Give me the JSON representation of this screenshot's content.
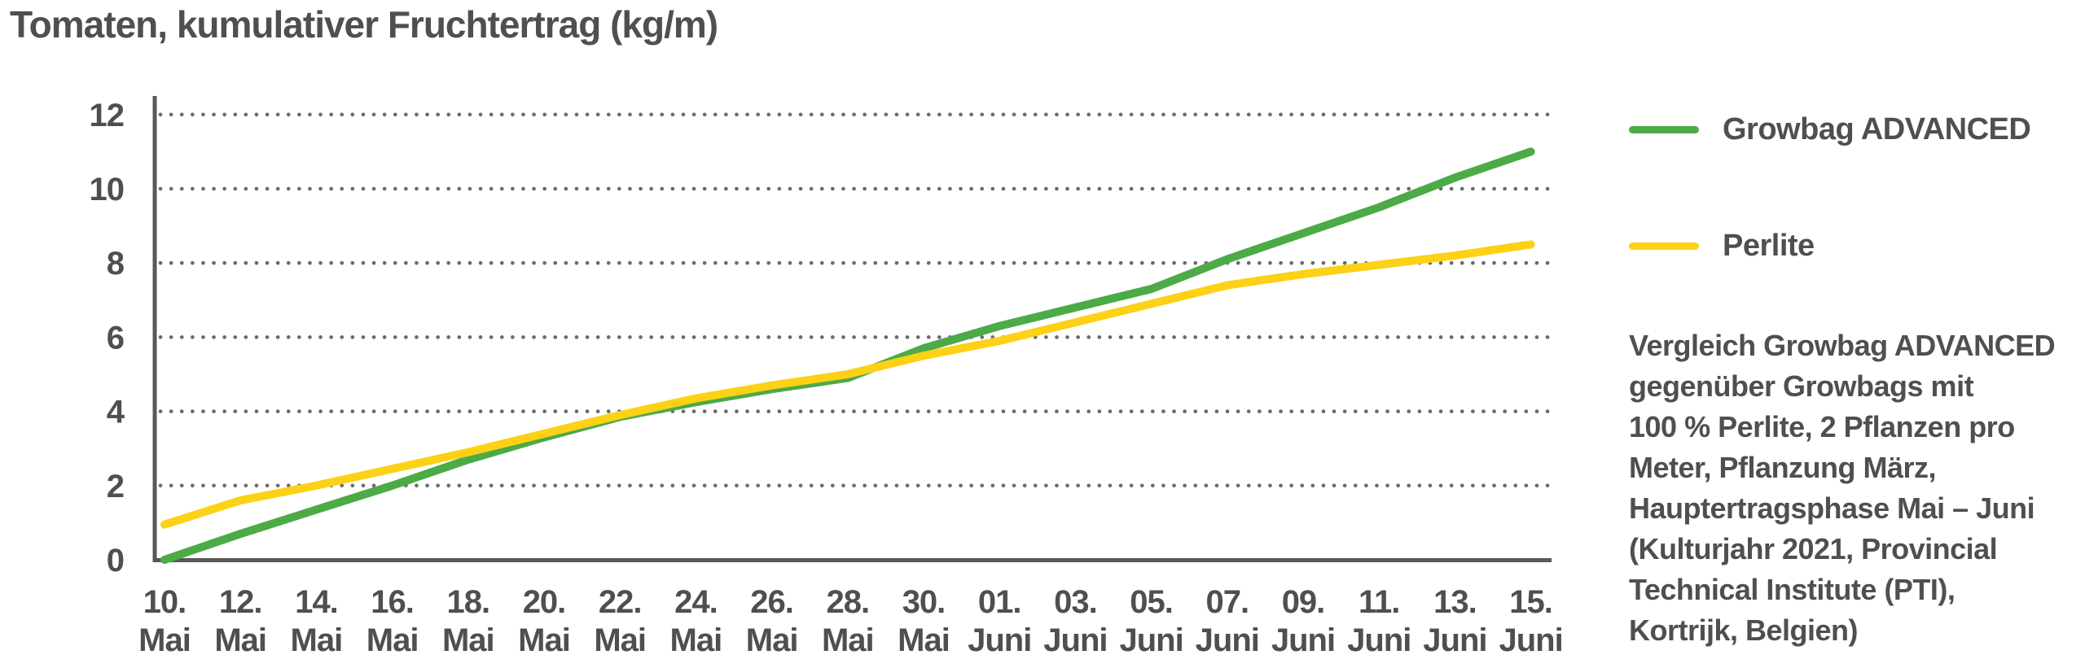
{
  "title": "Tomaten, kumulativer Fruchtertrag (kg/m)",
  "caption": "Vergleich Growbag ADVANCED\ngegenüber Growbags mit\n100 % Perlite, 2 Pflanzen pro\nMeter, Pflanzung März,\nHauptertragsphase Mai – Juni\n(Kulturjahr 2021, Provincial\nTechnical Institute (PTI),\nKortrijk, Belgien)",
  "colors": {
    "text": "#4f4f51",
    "axis": "#58585a",
    "grid_dots": "#5a5a5c",
    "growbag_green": "#4caa47",
    "perlite_yellow": "#fcd116"
  },
  "chart_data": {
    "type": "line",
    "title": "Tomaten, kumulativer Fruchtertrag (kg/m)",
    "xlabel": "",
    "ylabel": "",
    "ylim": [
      0,
      12
    ],
    "yticks": [
      0,
      2,
      4,
      6,
      8,
      10,
      12
    ],
    "grid": "dotted horizontal gridlines at y=2,4,6,8,10,12",
    "legend_position": "right",
    "categories": [
      "10. Mai",
      "12. Mai",
      "14. Mai",
      "16. Mai",
      "18. Mai",
      "20. Mai",
      "22. Mai",
      "24. Mai",
      "26. Mai",
      "28. Mai",
      "30. Mai",
      "01. Juni",
      "03. Juni",
      "05. Juni",
      "07. Juni",
      "09. Juni",
      "11. Juni",
      "13. Juni",
      "15. Juni"
    ],
    "series": [
      {
        "name": "Growbag ADVANCED",
        "color": "#4caa47",
        "values": [
          0,
          0.7,
          1.35,
          2.0,
          2.7,
          3.3,
          3.85,
          4.25,
          4.6,
          4.9,
          5.7,
          6.3,
          6.8,
          7.3,
          8.1,
          8.8,
          9.5,
          10.3,
          11.0
        ]
      },
      {
        "name": "Perlite",
        "color": "#fcd116",
        "values": [
          0.95,
          1.6,
          2.0,
          2.45,
          2.9,
          3.4,
          3.9,
          4.35,
          4.7,
          5.0,
          5.5,
          5.9,
          6.4,
          6.9,
          7.4,
          7.7,
          7.95,
          8.2,
          8.5
        ]
      }
    ]
  }
}
